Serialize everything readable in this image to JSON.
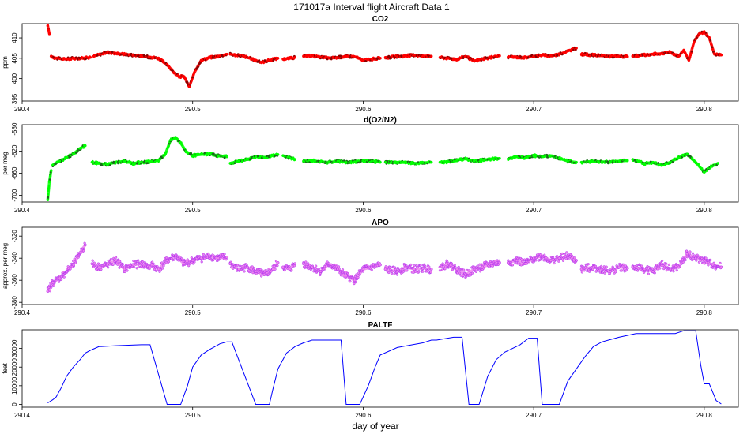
{
  "chart_data": {
    "title": "171017a   Interval flight Aircraft Data 1",
    "xlabel": "day of year",
    "type": "scatter",
    "xlim": [
      290.4,
      290.82
    ],
    "xticks": [
      290.4,
      290.5,
      290.6,
      290.7,
      290.8
    ],
    "xtick_labels": [
      "290.4",
      "290.5",
      "290.6",
      "290.7",
      "290.8"
    ],
    "panels": [
      {
        "name": "CO2",
        "type": "scatter",
        "ylabel": "ppm",
        "ylim": [
          394.5,
          413.5
        ],
        "yticks": [
          395,
          400,
          405,
          410
        ],
        "ytick_labels": [
          "395",
          "400",
          "405",
          "410"
        ],
        "color": "#ff0000",
        "segments": [
          {
            "x": [
              290.415,
              290.4155,
              290.416
            ],
            "y": [
              413,
              412,
              411
            ]
          },
          {
            "x": [
              290.417,
              290.42,
              290.425,
              290.43,
              290.435,
              290.44
            ],
            "y": [
              405.5,
              405,
              404.8,
              405,
              405,
              405.2
            ]
          },
          {
            "x": [
              290.442,
              290.45,
              290.455,
              290.46,
              290.465,
              290.47,
              290.475,
              290.48,
              290.483,
              290.486,
              290.489,
              290.492,
              290.495,
              290.498,
              290.501,
              290.505,
              290.51,
              290.515,
              290.52
            ],
            "y": [
              405.5,
              406.5,
              406.2,
              406,
              405.8,
              405.5,
              405.3,
              405,
              404,
              403,
              401.5,
              400.5,
              400.5,
              398,
              401.5,
              404.5,
              405.2,
              405.5,
              406
            ]
          },
          {
            "x": [
              290.522,
              290.53,
              290.535,
              290.54,
              290.545,
              290.55
            ],
            "y": [
              406,
              405.5,
              404.8,
              404,
              404.5,
              405
            ]
          },
          {
            "x": [
              290.553,
              290.557,
              290.56
            ],
            "y": [
              404.8,
              405,
              405.2
            ]
          },
          {
            "x": [
              290.565,
              290.57,
              290.575,
              290.58,
              290.585,
              290.59,
              290.595,
              290.6,
              290.605,
              290.61
            ],
            "y": [
              405.5,
              405.6,
              405.3,
              405,
              405.2,
              405.5,
              405.4,
              404.5,
              404.8,
              405
            ]
          },
          {
            "x": [
              290.613,
              290.62,
              290.625,
              290.63,
              290.635,
              290.64
            ],
            "y": [
              405.2,
              405.4,
              405.6,
              405.8,
              405.6,
              405.5
            ]
          },
          {
            "x": [
              290.645,
              290.65,
              290.655,
              290.66,
              290.665,
              290.67,
              290.675,
              290.68
            ],
            "y": [
              405.2,
              405,
              404.8,
              405.5,
              404.3,
              404.8,
              405.2,
              405.6
            ]
          },
          {
            "x": [
              290.685,
              290.69,
              290.695,
              290.7,
              290.705,
              290.71,
              290.715,
              290.72,
              290.725
            ],
            "y": [
              405.3,
              405.3,
              405.2,
              405.5,
              405.8,
              405.6,
              406,
              406.8,
              407.5
            ]
          },
          {
            "x": [
              290.728,
              290.735,
              290.74,
              290.745,
              290.75,
              290.755
            ],
            "y": [
              406,
              405.8,
              405.6,
              405.5,
              405.5,
              405.4
            ]
          },
          {
            "x": [
              290.758,
              290.765,
              290.77,
              290.775,
              290.78,
              290.785,
              290.788,
              290.791,
              290.794,
              290.797,
              290.8,
              290.803,
              290.806,
              290.81
            ],
            "y": [
              405.5,
              405.8,
              406,
              406.2,
              406.5,
              405.5,
              407,
              404.5,
              409,
              411,
              411.5,
              410,
              406,
              405.8
            ]
          }
        ]
      },
      {
        "name": "d(O2/N2)",
        "type": "scatter",
        "ylabel": "per meg",
        "ylim": [
          -712,
          -572
        ],
        "yticks": [
          -700,
          -660,
          -620,
          -580
        ],
        "ytick_labels": [
          "-700",
          "-660",
          "-620",
          "-580"
        ],
        "color": "#00ff00",
        "segments": [
          {
            "x": [
              290.415,
              290.4153,
              290.4156,
              290.416,
              290.4165,
              290.417
            ],
            "y": [
              -708,
              -698,
              -688,
              -675,
              -665,
              -655
            ]
          },
          {
            "x": [
              290.418,
              290.422,
              290.426,
              290.43,
              290.434,
              290.437
            ],
            "y": [
              -645,
              -638,
              -632,
              -625,
              -615,
              -610
            ]
          },
          {
            "x": [
              290.441,
              290.445,
              290.45,
              290.455,
              290.46,
              290.465,
              290.47,
              290.475
            ],
            "y": [
              -640,
              -642,
              -644,
              -640,
              -638,
              -642,
              -640,
              -639
            ]
          },
          {
            "x": [
              290.476,
              290.48,
              290.484,
              290.487,
              290.49,
              290.493,
              290.496,
              290.5,
              290.505,
              290.51,
              290.515,
              290.52
            ],
            "y": [
              -638,
              -637,
              -625,
              -600,
              -595,
              -605,
              -620,
              -628,
              -626,
              -625,
              -628,
              -630
            ]
          },
          {
            "x": [
              290.522,
              290.527,
              290.532,
              290.537,
              290.542,
              290.547,
              290.55
            ],
            "y": [
              -642,
              -638,
              -635,
              -630,
              -632,
              -628,
              -626
            ]
          },
          {
            "x": [
              290.553,
              290.557,
              290.56
            ],
            "y": [
              -628,
              -632,
              -635
            ]
          },
          {
            "x": [
              290.565,
              290.57,
              290.575,
              290.58,
              290.585,
              290.59,
              290.595,
              290.6,
              290.605,
              290.61
            ],
            "y": [
              -638,
              -637,
              -639,
              -640,
              -638,
              -640,
              -639,
              -637,
              -638,
              -640
            ]
          },
          {
            "x": [
              290.613,
              290.62,
              290.625,
              290.63,
              290.635,
              290.64
            ],
            "y": [
              -640,
              -641,
              -640,
              -642,
              -641,
              -640
            ]
          },
          {
            "x": [
              290.645,
              290.65,
              290.655,
              290.66,
              290.665,
              290.67,
              290.675,
              290.68
            ],
            "y": [
              -640,
              -639,
              -636,
              -634,
              -638,
              -636,
              -634,
              -633
            ]
          },
          {
            "x": [
              290.685,
              290.69,
              290.695,
              290.7,
              290.705,
              290.71,
              290.715,
              290.72,
              290.725
            ],
            "y": [
              -634,
              -630,
              -632,
              -628,
              -630,
              -628,
              -633,
              -638,
              -640
            ]
          },
          {
            "x": [
              290.728,
              290.735,
              290.74,
              290.745,
              290.75,
              290.755
            ],
            "y": [
              -640,
              -638,
              -639,
              -640,
              -638,
              -637
            ]
          },
          {
            "x": [
              290.758,
              290.765,
              290.77,
              290.775,
              290.78,
              290.785,
              290.79,
              290.795,
              290.8,
              290.804,
              290.808
            ],
            "y": [
              -635,
              -642,
              -640,
              -646,
              -640,
              -632,
              -625,
              -640,
              -658,
              -648,
              -642
            ]
          }
        ]
      },
      {
        "name": "APO",
        "type": "scatter",
        "ylabel": "approx. per meg",
        "ylim": [
          -382,
          -312
        ],
        "yticks": [
          -380,
          -360,
          -340,
          -320
        ],
        "ytick_labels": [
          "-380",
          "-360",
          "-340",
          "-320"
        ],
        "color": "#ee82ee",
        "segments": [
          {
            "x": [
              290.415,
              290.418,
              290.422,
              290.426,
              290.43,
              290.434,
              290.437
            ],
            "y": [
              -370,
              -362,
              -358,
              -352,
              -346,
              -335,
              -328
            ]
          },
          {
            "x": [
              290.441,
              290.445,
              290.45,
              290.455,
              290.46,
              290.465,
              290.47,
              290.475
            ],
            "y": [
              -345,
              -348,
              -346,
              -342,
              -350,
              -346,
              -345,
              -348
            ]
          },
          {
            "x": [
              290.476,
              290.48,
              290.485,
              290.49,
              290.495,
              290.5,
              290.505,
              290.51,
              290.515,
              290.52
            ],
            "y": [
              -346,
              -350,
              -342,
              -338,
              -345,
              -342,
              -340,
              -338,
              -340,
              -339
            ]
          },
          {
            "x": [
              290.522,
              290.527,
              290.532,
              290.537,
              290.542,
              290.547,
              290.55
            ],
            "y": [
              -345,
              -350,
              -348,
              -352,
              -355,
              -350,
              -344
            ]
          },
          {
            "x": [
              290.553,
              290.557,
              290.56
            ],
            "y": [
              -348,
              -350,
              -345
            ]
          },
          {
            "x": [
              290.565,
              290.57,
              290.575,
              290.58,
              290.585,
              290.59,
              290.595,
              290.6,
              290.605,
              290.61
            ],
            "y": [
              -345,
              -348,
              -352,
              -345,
              -350,
              -356,
              -360,
              -350,
              -348,
              -346
            ]
          },
          {
            "x": [
              290.613,
              290.62,
              290.625,
              290.63,
              290.635,
              290.64
            ],
            "y": [
              -350,
              -352,
              -348,
              -350,
              -349,
              -350
            ]
          },
          {
            "x": [
              290.645,
              290.65,
              290.655,
              290.66,
              290.665,
              290.67,
              290.675,
              290.68
            ],
            "y": [
              -348,
              -345,
              -350,
              -355,
              -350,
              -348,
              -345,
              -344
            ]
          },
          {
            "x": [
              290.685,
              290.69,
              290.695,
              290.7,
              290.705,
              290.71,
              290.715,
              290.72,
              290.725
            ],
            "y": [
              -344,
              -342,
              -345,
              -340,
              -338,
              -342,
              -340,
              -338,
              -342
            ]
          },
          {
            "x": [
              290.728,
              290.735,
              290.74,
              290.745,
              290.75,
              290.755
            ],
            "y": [
              -350,
              -348,
              -350,
              -352,
              -348,
              -349
            ]
          },
          {
            "x": [
              290.758,
              290.765,
              290.77,
              290.775,
              290.78,
              290.785,
              290.79,
              290.795,
              290.8,
              290.805,
              290.81
            ],
            "y": [
              -348,
              -350,
              -352,
              -345,
              -350,
              -348,
              -336,
              -340,
              -342,
              -346,
              -348
            ]
          }
        ]
      },
      {
        "name": "PALTF",
        "type": "line",
        "ylabel": "feet",
        "ylim": [
          -1500,
          40000
        ],
        "yticks": [
          0,
          10000,
          20000,
          30000
        ],
        "ytick_labels": [
          "0",
          "10000",
          "20000",
          "30000"
        ],
        "color": "#0000ff",
        "segments": [
          {
            "x": [
              290.415,
              290.418,
              290.42,
              290.423,
              290.426,
              290.43,
              290.434,
              290.437,
              290.44,
              290.445,
              290.455,
              290.47,
              290.475,
              290.485,
              290.49,
              290.493,
              290.497,
              290.5,
              290.505,
              290.51,
              290.513,
              290.516,
              290.52,
              290.523,
              290.537,
              290.54,
              290.545,
              290.547,
              290.55,
              290.555,
              290.56,
              290.565,
              290.57,
              290.573,
              290.587,
              290.59,
              290.593,
              290.598,
              290.603,
              290.607,
              290.61,
              290.62,
              290.635,
              290.64,
              290.643,
              290.653,
              290.658,
              290.662,
              290.664,
              290.668,
              290.673,
              290.678,
              290.683,
              290.692,
              290.697,
              290.702,
              290.705,
              290.71,
              290.715,
              290.72,
              290.725,
              290.73,
              290.735,
              290.74,
              290.75,
              290.76,
              290.763,
              290.783,
              290.788,
              290.794,
              290.795,
              290.798,
              290.8,
              290.803,
              290.807,
              290.81
            ],
            "y": [
              800,
              2500,
              4000,
              9000,
              15000,
              20000,
              24000,
              27500,
              29000,
              31000,
              31500,
              32000,
              32000,
              0,
              0,
              0,
              10000,
              20000,
              26500,
              29500,
              31000,
              32500,
              33500,
              33500,
              0,
              0,
              0,
              8000,
              19000,
              27500,
              31000,
              33000,
              34500,
              34500,
              34500,
              0,
              0,
              0,
              10000,
              20000,
              26500,
              30500,
              33000,
              34500,
              34500,
              36000,
              36000,
              0,
              0,
              0,
              15000,
              24000,
              28000,
              32000,
              35500,
              35500,
              0,
              0,
              0,
              12500,
              19000,
              25500,
              31000,
              33500,
              36000,
              38000,
              38000,
              38000,
              39500,
              39500,
              39500,
              21000,
              11000,
              11000,
              2000,
              200
            ]
          }
        ]
      }
    ]
  }
}
